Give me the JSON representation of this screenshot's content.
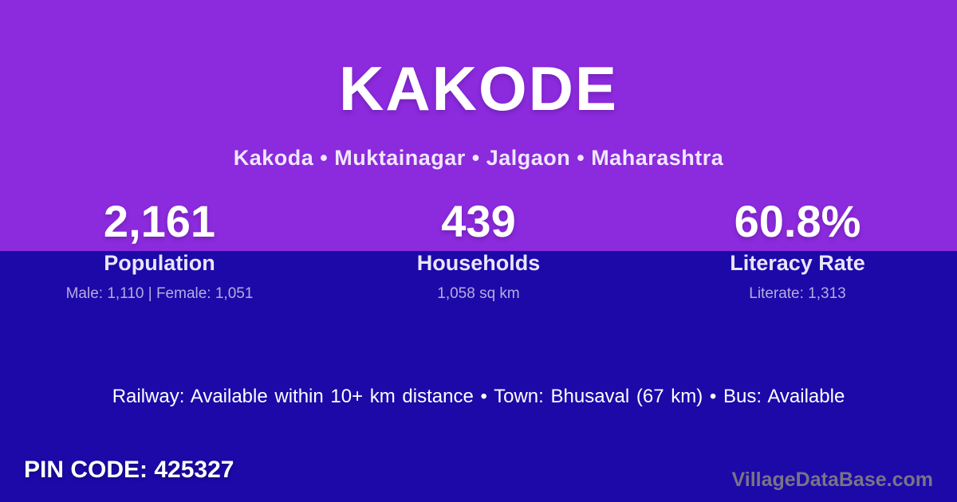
{
  "card": {
    "title": "KAKODE",
    "subtitle": "Kakoda • Muktainagar • Jalgaon • Maharashtra"
  },
  "stats": [
    {
      "value": "2,161",
      "label": "Population",
      "detail": "Male: 1,110 | Female: 1,051"
    },
    {
      "value": "439",
      "label": "Households",
      "detail": "1,058 sq km"
    },
    {
      "value": "60.8%",
      "label": "Literacy Rate",
      "detail": "Literate: 1,313"
    }
  ],
  "amenities": "Railway: Available within 10+ km distance  •  Town: Bhusaval (67 km)  •  Bus: Available",
  "footer": {
    "pin_code": "PIN CODE: 425327",
    "watermark": "VillageDataBase.com"
  },
  "colors": {
    "top_background": "#8c2ade",
    "bottom_background": "#1c09a8",
    "title_text": "#ffffff",
    "subtitle_text": "#f1e7fd",
    "stat_label_text": "#eae4f8",
    "stat_detail_text": "#b7abdf",
    "watermark_text": "#787487"
  }
}
